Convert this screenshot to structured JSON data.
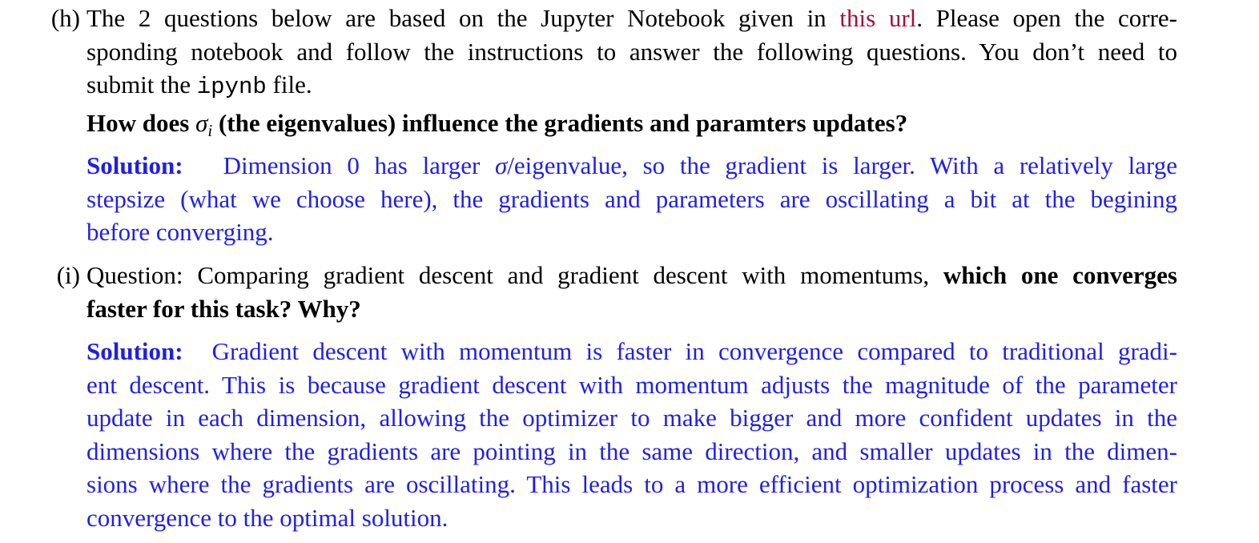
{
  "colors": {
    "text": "#000000",
    "link": "#a50f3a",
    "solution": "#1f1fe6"
  },
  "item_h": {
    "marker": "(h)",
    "line1": {
      "pre": "The 2 questions below are based on the Jupyter Notebook given in ",
      "link": "this url",
      "post": ". Please open the corre-"
    },
    "line2": "sponding notebook and follow the instructions to answer the following questions. You don’t need to",
    "line3": {
      "pre": "submit the ",
      "code": "ipynb",
      "post": " file."
    },
    "question": {
      "pre": "How does ",
      "sigma": "σ",
      "sub": "i",
      "post": " (the eigenvalues) influence the gradients and paramters updates?"
    },
    "solution": {
      "label": "Solution:",
      "line1": {
        "pre": "Dimension 0 has larger ",
        "sigma": "σ",
        "post": "/eigenvalue, so the gradient is larger. With a relatively large"
      },
      "line2": "stepsize (what we choose here), the gradients and parameters are oscillating a bit at the begining",
      "line3": "before converging."
    }
  },
  "item_i": {
    "marker": "(i)",
    "line1": {
      "pre": "Question: Comparing gradient descent and gradient descent with momentums, ",
      "bold": "which one converges"
    },
    "line2": "faster for this task? Why?",
    "solution": {
      "label": "Solution:",
      "line1": "Gradient descent with momentum is faster in convergence compared to traditional gradi-",
      "line2": "ent descent. This is because gradient descent with momentum adjusts the magnitude of the parameter",
      "line3": "update in each dimension, allowing the optimizer to make bigger and more confident updates in the",
      "line4": "dimensions where the gradients are pointing in the same direction, and smaller updates in the dimen-",
      "line5": "sions where the gradients are oscillating. This leads to a more efficient optimization process and faster",
      "line6": "convergence to the optimal solution."
    }
  }
}
